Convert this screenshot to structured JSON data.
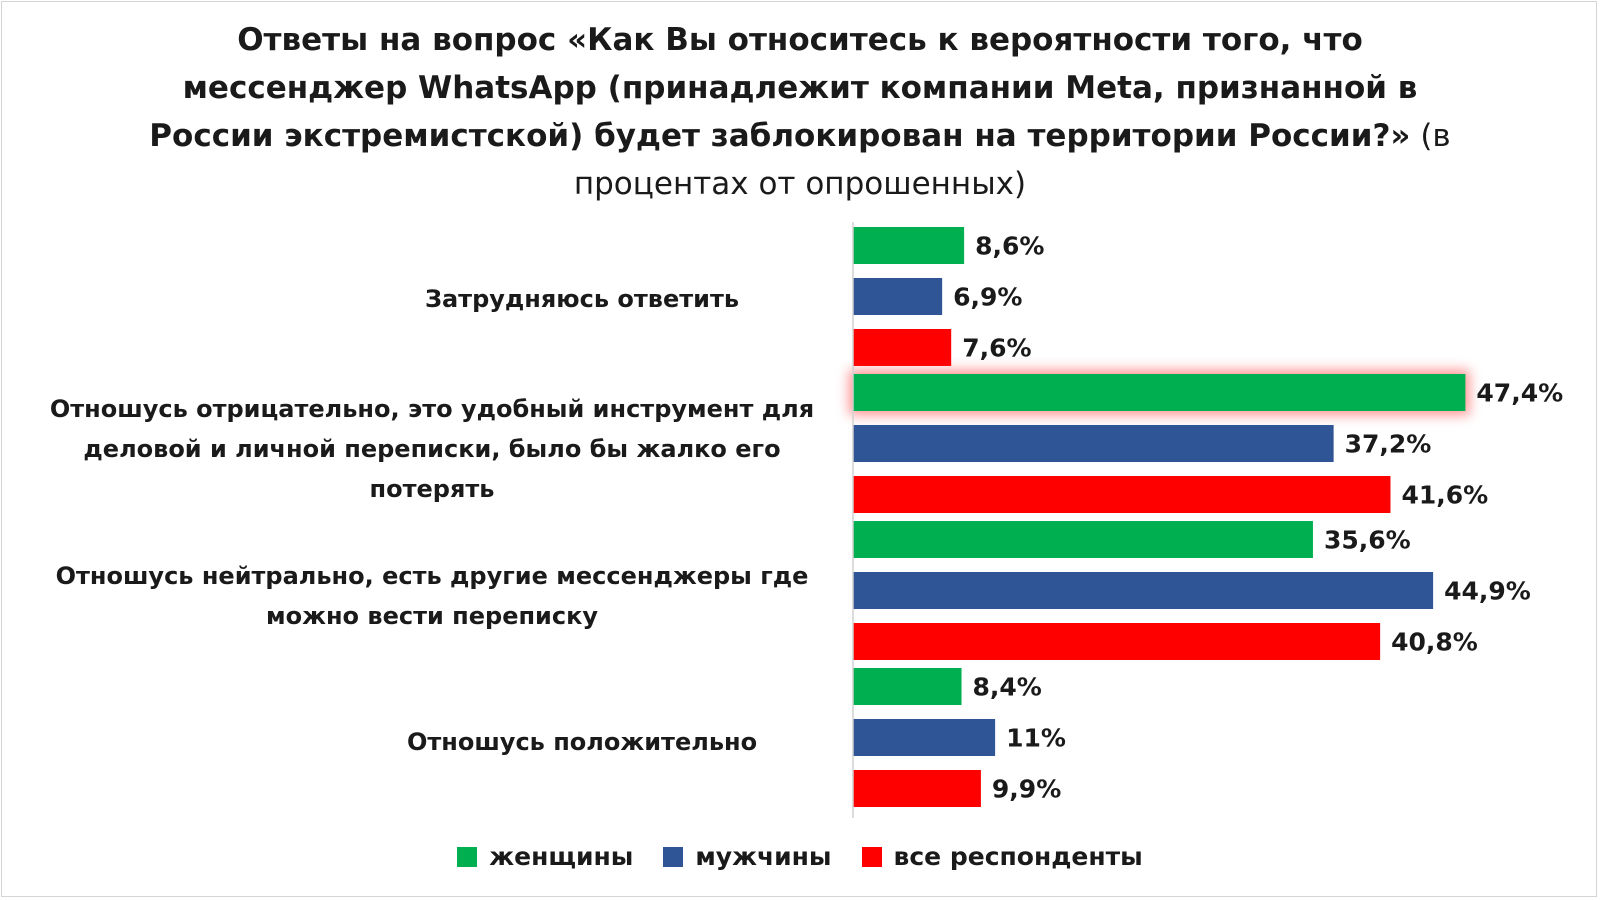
{
  "title": {
    "bold": "Ответы на вопрос «Как Вы относитесь к вероятности того, что мессенджер WhatsApp (принадлежит компании Meta, признанной в России экстремистской) будет заблокирован на территории России?»",
    "normal": " (в процентах от опрошенных)"
  },
  "chart_data": {
    "type": "bar",
    "orientation": "horizontal",
    "categories": [
      "Затрудняюсь ответить",
      "Отношусь отрицательно, это удобный инструмент для деловой и личной переписки, было бы жалко его потерять",
      "Отношусь нейтрально, есть другие мессенджеры где можно вести переписку",
      "Отношусь положительно"
    ],
    "series": [
      {
        "name": "женщины",
        "color": "#00b050",
        "values": [
          8.6,
          47.4,
          35.6,
          8.4
        ],
        "labels": [
          "8,6%",
          "47,4%",
          "35,6%",
          "8,4%"
        ]
      },
      {
        "name": "мужчины",
        "color": "#2f5597",
        "values": [
          6.9,
          37.2,
          44.9,
          11
        ],
        "labels": [
          "6,9%",
          "37,2%",
          "44,9%",
          "11%"
        ]
      },
      {
        "name": "все респонденты",
        "color": "#ff0000",
        "values": [
          7.6,
          41.6,
          40.8,
          9.9
        ],
        "labels": [
          "7,6%",
          "41,6%",
          "40,8%",
          "9,9%"
        ]
      }
    ],
    "highlight": {
      "category": 1,
      "series": 0
    },
    "legend_position": "bottom",
    "grid": false
  },
  "legend": [
    {
      "label": "женщины",
      "color": "#00b050"
    },
    {
      "label": "мужчины",
      "color": "#2f5597"
    },
    {
      "label": "все респонденты",
      "color": "#ff0000"
    }
  ]
}
